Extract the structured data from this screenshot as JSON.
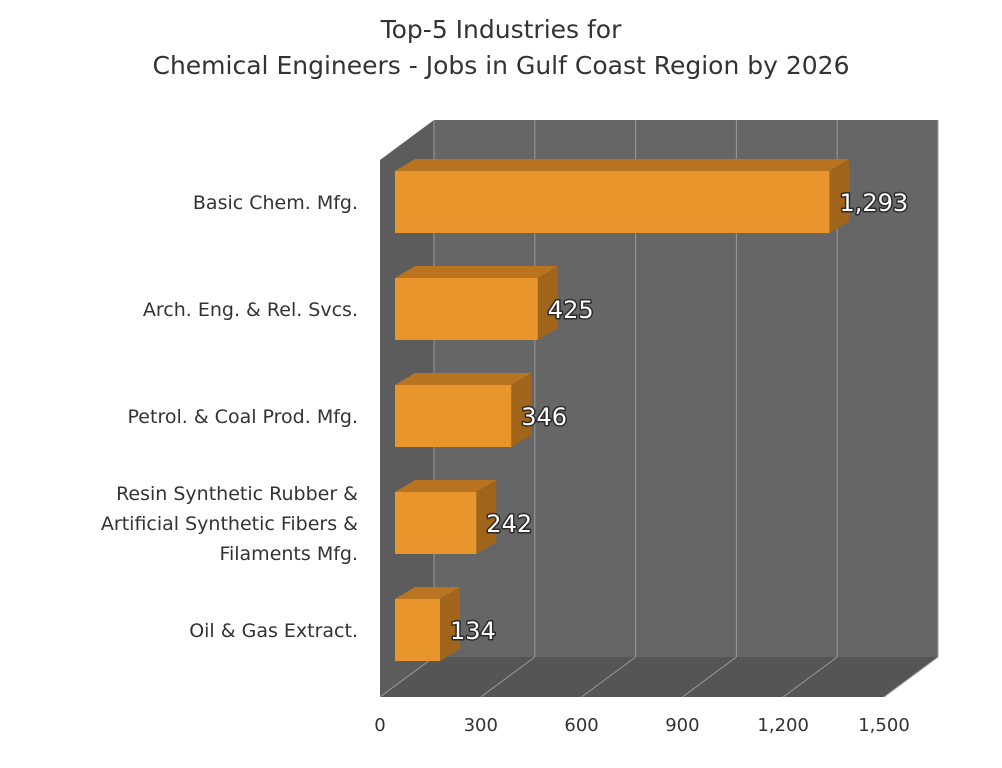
{
  "chart_data": {
    "type": "bar",
    "orientation": "horizontal",
    "title": [
      "Top-5 Industries for",
      "Chemical Engineers - Jobs in Gulf Coast Region by 2026"
    ],
    "categories": [
      "Basic Chem. Mfg.",
      "Arch. Eng. & Rel. Svcs.",
      "Petrol. & Coal Prod. Mfg.",
      "Resin Synthetic Rubber & Artificial Synthetic Fibers & Filaments Mfg.",
      "Oil & Gas Extract."
    ],
    "category_label_lines": [
      [
        "Basic Chem. Mfg."
      ],
      [
        "Arch. Eng. & Rel. Svcs."
      ],
      [
        "Petrol. & Coal Prod. Mfg."
      ],
      [
        "Resin Synthetic Rubber &",
        "Artificial Synthetic Fibers &",
        "Filaments Mfg."
      ],
      [
        "Oil & Gas Extract."
      ]
    ],
    "values": [
      1293,
      425,
      346,
      242,
      134
    ],
    "value_labels": [
      "1,293",
      "425",
      "346",
      "242",
      "134"
    ],
    "xlim": [
      0,
      1500
    ],
    "x_ticks": [
      0,
      300,
      600,
      900,
      1200,
      1500
    ],
    "x_tick_labels": [
      "0",
      "300",
      "600",
      "900",
      "1,200",
      "1,500"
    ],
    "xlabel": "",
    "ylabel": "",
    "grid": true,
    "style": "3d",
    "colors": {
      "bar_front": "#E8962B",
      "bar_top": "#B87420",
      "bar_side": "#A0641A",
      "back_wall": "#666666",
      "side_wall": "#5C5C5C",
      "floor": "#555555",
      "gridline": "#9A9A9A"
    }
  }
}
